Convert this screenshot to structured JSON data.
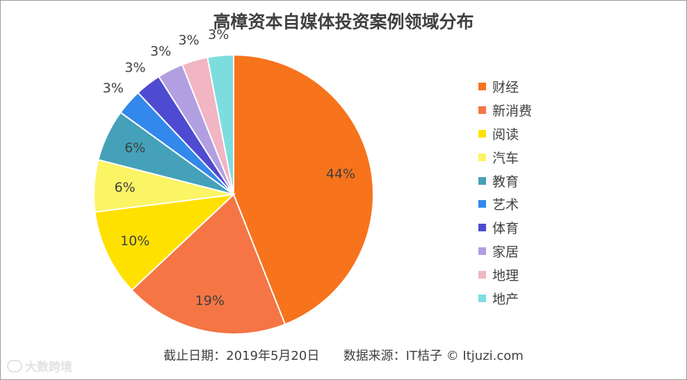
{
  "chart_data": {
    "type": "pie",
    "title": "高樟资本自媒体投资案例领域分布",
    "categories": [
      "财经",
      "新消费",
      "阅读",
      "汽车",
      "教育",
      "艺术",
      "体育",
      "家居",
      "地理",
      "地产"
    ],
    "values": [
      44,
      19,
      10,
      6,
      6,
      3,
      3,
      3,
      3,
      3
    ],
    "labels": [
      "44%",
      "19%",
      "10%",
      "6%",
      "6%",
      "3%",
      "3%",
      "3%",
      "3%",
      "3%"
    ],
    "colors": [
      "#f7731c",
      "#f57545",
      "#ffe100",
      "#fbf464",
      "#45a1b9",
      "#3388ec",
      "#4e4bd0",
      "#b29fe2",
      "#f1b5c3",
      "#7dddde"
    ],
    "legend_position": "right"
  },
  "footer": {
    "date_text": "截止日期：2019年5月20日",
    "source_text": "数据来源：IT桔子 © Itjuzi.com"
  },
  "watermark": {
    "text": "大数跨境"
  }
}
